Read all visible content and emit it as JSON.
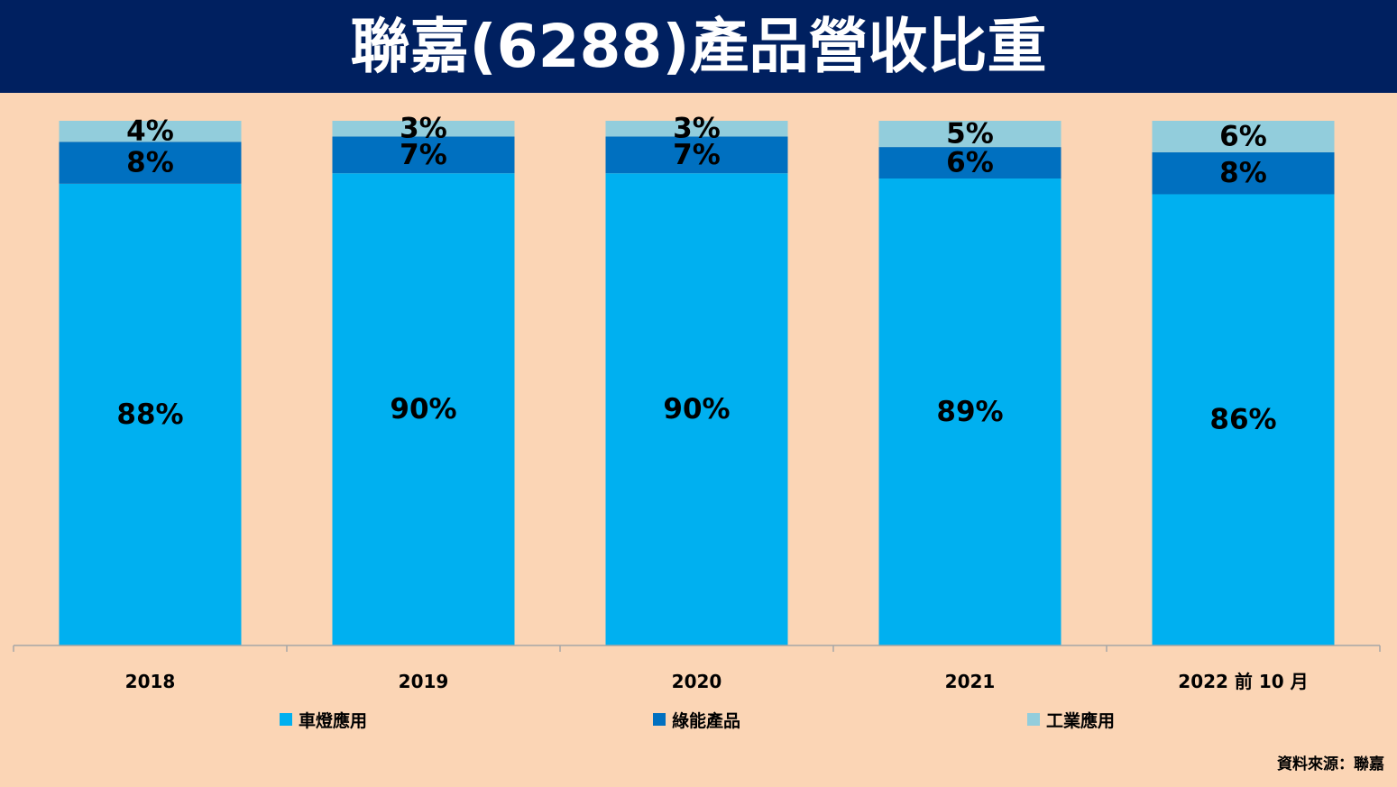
{
  "header": {
    "title": "聯嘉(6288)產品營收比重"
  },
  "colors": {
    "background": "#fbd5b5",
    "title_bar": "#002060",
    "title_text": "#ffffff",
    "series": [
      "#00b0f0",
      "#0070c0",
      "#92cddc"
    ]
  },
  "chart_data": {
    "type": "bar",
    "stacked": true,
    "percent_stacked": true,
    "title": "聯嘉(6288)產品營收比重",
    "xlabel": "",
    "ylabel": "",
    "categories": [
      "2018",
      "2019",
      "2020",
      "2021",
      "2022 前 10 月"
    ],
    "series": [
      {
        "name": "車燈應用",
        "values": [
          88,
          90,
          90,
          89,
          86
        ],
        "labels": [
          "88%",
          "90%",
          "90%",
          "89%",
          "86%"
        ]
      },
      {
        "name": "綠能產品",
        "values": [
          8,
          7,
          7,
          6,
          8
        ],
        "labels": [
          "8%",
          "7%",
          "7%",
          "6%",
          "8%"
        ]
      },
      {
        "name": "工業應用",
        "values": [
          4,
          3,
          3,
          5,
          6
        ],
        "labels": [
          "4%",
          "3%",
          "3%",
          "5%",
          "6%"
        ]
      }
    ],
    "legend_position": "bottom",
    "grid": false,
    "ylim": [
      0,
      100
    ]
  },
  "source": "資料來源：聯嘉"
}
